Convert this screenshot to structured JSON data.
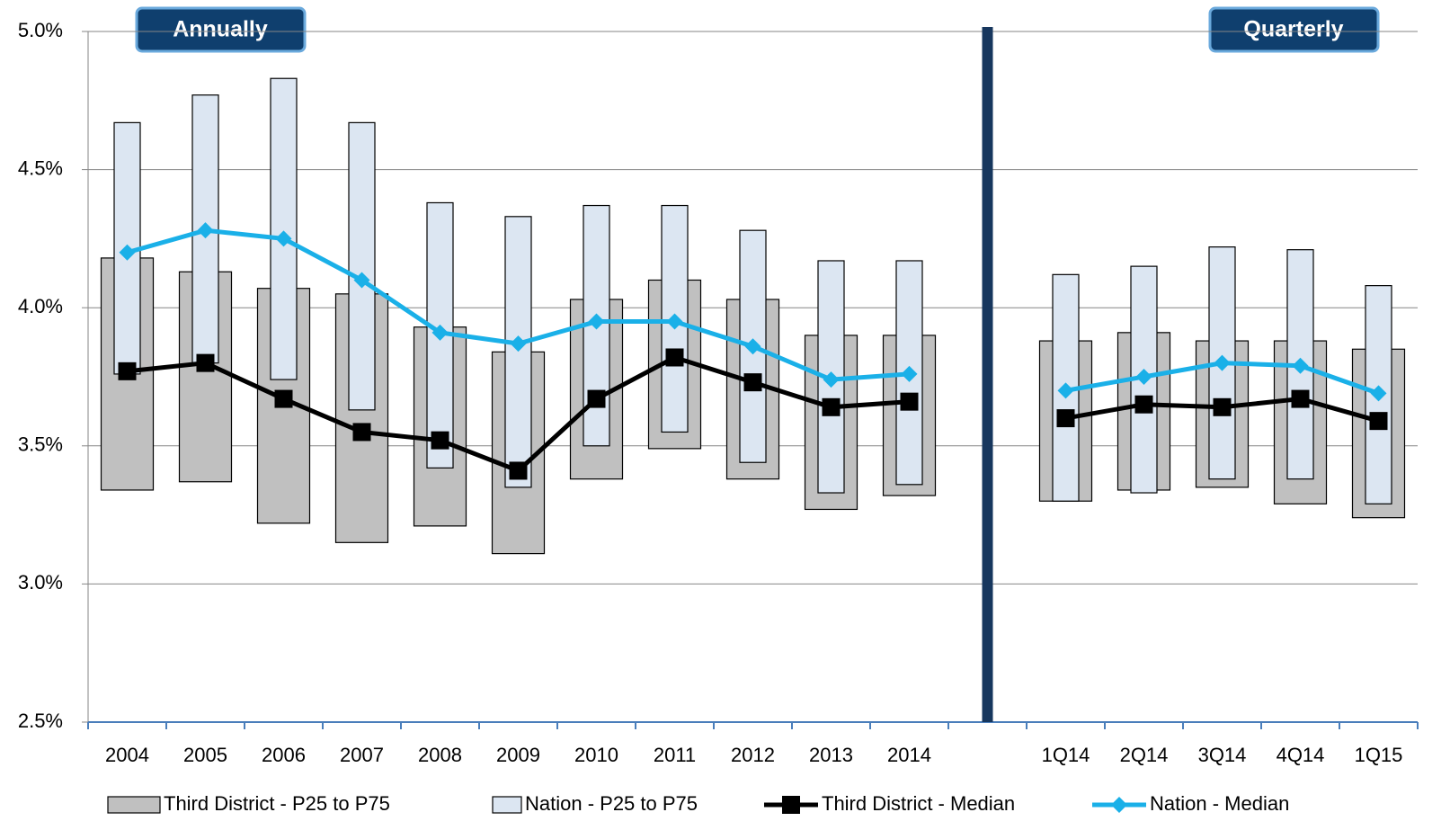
{
  "chart_data": {
    "type": "combo",
    "annotations": [
      "Annually",
      "Quarterly"
    ],
    "categories": [
      "2004",
      "2005",
      "2006",
      "2007",
      "2008",
      "2009",
      "2010",
      "2011",
      "2012",
      "2013",
      "2014",
      null,
      "1Q14",
      "2Q14",
      "3Q14",
      "4Q14",
      "1Q15"
    ],
    "ylim": [
      2.5,
      5.0
    ],
    "yticks": [
      {
        "value": 2.5,
        "label": "2.5%"
      },
      {
        "value": 3.0,
        "label": "3.0%"
      },
      {
        "value": 3.5,
        "label": "3.5%"
      },
      {
        "value": 4.0,
        "label": "4.0%"
      },
      {
        "value": 4.5,
        "label": "4.5%"
      },
      {
        "value": 5.0,
        "label": "5.0%"
      }
    ],
    "grid": true,
    "series": [
      {
        "name": "Third District - P25 to P75",
        "type": "range",
        "color": "#c0c0c0",
        "low": [
          3.34,
          3.37,
          3.22,
          3.15,
          3.21,
          3.11,
          3.38,
          3.49,
          3.38,
          3.27,
          3.32,
          null,
          3.3,
          3.34,
          3.35,
          3.29,
          3.24
        ],
        "high": [
          4.18,
          4.13,
          4.07,
          4.05,
          3.93,
          3.84,
          4.03,
          4.1,
          4.03,
          3.9,
          3.9,
          null,
          3.88,
          3.91,
          3.88,
          3.88,
          3.85
        ]
      },
      {
        "name": "Nation - P25 to P75",
        "type": "range",
        "color": "#dce6f2",
        "low": [
          3.76,
          3.8,
          3.74,
          3.63,
          3.42,
          3.35,
          3.5,
          3.55,
          3.44,
          3.33,
          3.36,
          null,
          3.3,
          3.33,
          3.38,
          3.38,
          3.29
        ],
        "high": [
          4.67,
          4.77,
          4.83,
          4.67,
          4.38,
          4.33,
          4.37,
          4.37,
          4.28,
          4.17,
          4.17,
          null,
          4.12,
          4.15,
          4.22,
          4.21,
          4.08
        ]
      },
      {
        "name": "Third District - Median",
        "type": "line",
        "color": "#000000",
        "marker": "square",
        "values": [
          3.77,
          3.8,
          3.67,
          3.55,
          3.52,
          3.41,
          3.67,
          3.82,
          3.73,
          3.64,
          3.66,
          null,
          3.6,
          3.65,
          3.64,
          3.67,
          3.59
        ]
      },
      {
        "name": "Nation - Median",
        "type": "line",
        "color": "#1ab0e8",
        "marker": "diamond",
        "values": [
          4.2,
          4.28,
          4.25,
          4.1,
          3.91,
          3.87,
          3.95,
          3.95,
          3.86,
          3.74,
          3.76,
          null,
          3.7,
          3.75,
          3.8,
          3.79,
          3.69
        ]
      }
    ]
  }
}
